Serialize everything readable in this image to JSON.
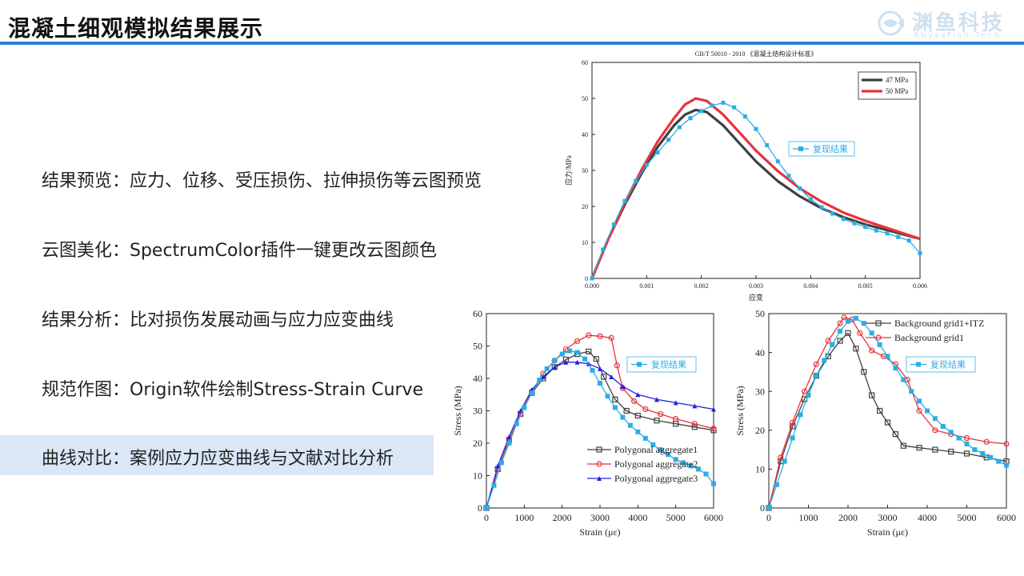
{
  "page": {
    "title": "混凝土细观模拟结果展示",
    "logo_text": "渊鱼科技",
    "logo_sub": "AbyssFish Tech"
  },
  "items": [
    {
      "label": "结果预览：应力、位移、受压损伤、拉伸损伤等云图预览",
      "highlighted": false
    },
    {
      "label": "云图美化：SpectrumColor插件一键更改云图颜色",
      "highlighted": false
    },
    {
      "label": "结果分析：比对损伤发展动画与应力应变曲线",
      "highlighted": false
    },
    {
      "label": "规范作图：Origin软件绘制Stress-Strain Curve",
      "highlighted": false
    },
    {
      "label": "曲线对比：案例应力应变曲线与文献对比分析",
      "highlighted": true
    }
  ],
  "colors": {
    "accent": "#2b7fd4",
    "highlight": "#d9e7f7",
    "series_black": "#404040",
    "series_red": "#e8333a",
    "series_cyan": "#29aee6",
    "series_blue": "#2222dd"
  },
  "chart_data": [
    {
      "type": "line",
      "title": "GB/T 50010 - 2010 《混凝土结构设计标准》",
      "xlabel": "应变",
      "ylabel": "应力/MPa",
      "xlim": [
        0,
        0.006
      ],
      "ylim": [
        0,
        60
      ],
      "xticks": [
        "0.000",
        "0.001",
        "0.002",
        "0.003",
        "0.004",
        "0.005",
        "0.006"
      ],
      "yticks": [
        "0",
        "10",
        "20",
        "30",
        "40",
        "50",
        "60"
      ],
      "legend_position": "top-right",
      "annotation": "复现结果",
      "series": [
        {
          "name": "47 MPa",
          "color": "#404040",
          "marker": "none",
          "x": [
            0,
            0.0003,
            0.0006,
            0.0009,
            0.0012,
            0.0015,
            0.0017,
            0.0019,
            0.0021,
            0.0024,
            0.0027,
            0.003,
            0.0034,
            0.0038,
            0.0042,
            0.0046,
            0.005,
            0.0055,
            0.006
          ],
          "y": [
            0,
            11,
            20.5,
            29,
            36.5,
            42.5,
            45.5,
            46.8,
            46.2,
            42.5,
            37.5,
            32.5,
            27,
            22.8,
            19.5,
            17,
            15,
            13,
            11
          ]
        },
        {
          "name": "50 MPa",
          "color": "#e8333a",
          "marker": "none",
          "x": [
            0,
            0.0003,
            0.0006,
            0.0009,
            0.0012,
            0.0015,
            0.0017,
            0.0019,
            0.0021,
            0.0024,
            0.0027,
            0.003,
            0.0034,
            0.0038,
            0.0042,
            0.0046,
            0.005,
            0.0055,
            0.006
          ],
          "y": [
            0,
            11,
            21,
            30,
            38,
            44.5,
            48.3,
            50,
            49.3,
            45.5,
            40.5,
            35.5,
            29.8,
            25,
            21.3,
            18.3,
            16,
            13.5,
            11
          ]
        },
        {
          "name": "复现结果",
          "color": "#29aee6",
          "marker": "square",
          "x": [
            0,
            0.0002,
            0.0004,
            0.0006,
            0.0008,
            0.001,
            0.0012,
            0.0014,
            0.0016,
            0.0018,
            0.002,
            0.0022,
            0.0024,
            0.0026,
            0.0028,
            0.003,
            0.0032,
            0.0034,
            0.0036,
            0.0038,
            0.004,
            0.0042,
            0.0044,
            0.0046,
            0.0048,
            0.005,
            0.0052,
            0.0054,
            0.0056,
            0.0058,
            0.006
          ],
          "y": [
            0,
            8,
            15,
            21.5,
            27,
            31.5,
            35,
            38.5,
            42,
            44.5,
            46.5,
            48,
            48.8,
            47.5,
            45,
            41.5,
            37,
            32.5,
            28.5,
            25,
            22,
            19.8,
            18,
            16.5,
            15.3,
            14.3,
            13.3,
            12.5,
            11.5,
            10.5,
            7
          ]
        }
      ]
    },
    {
      "type": "line",
      "xlabel": "Strain (με)",
      "ylabel": "Stress (MPa)",
      "xlim": [
        0,
        6000
      ],
      "ylim": [
        0,
        60
      ],
      "xticks": [
        "0",
        "1000",
        "2000",
        "3000",
        "4000",
        "5000",
        "6000"
      ],
      "yticks": [
        "0",
        "10",
        "20",
        "30",
        "40",
        "50",
        "60"
      ],
      "legend_position": "bottom-right",
      "annotation": "复现结果",
      "series": [
        {
          "name": "Polygonal aggregate1",
          "color": "#404040",
          "marker": "open-square",
          "x": [
            0,
            300,
            600,
            900,
            1200,
            1500,
            1800,
            2100,
            2400,
            2700,
            2900,
            3100,
            3400,
            3700,
            4000,
            4500,
            5000,
            5500,
            6000
          ],
          "y": [
            0,
            12,
            21,
            29,
            35.5,
            40,
            43.5,
            45.8,
            47.5,
            48.3,
            46,
            40.5,
            33.5,
            30,
            28.5,
            27,
            26,
            25,
            24
          ]
        },
        {
          "name": "Polygonal aggregate2",
          "color": "#e8333a",
          "marker": "open-circle",
          "x": [
            0,
            300,
            600,
            900,
            1200,
            1500,
            1800,
            2100,
            2400,
            2700,
            3000,
            3300,
            3450,
            3600,
            3900,
            4200,
            4600,
            5000,
            5500,
            6000
          ],
          "y": [
            0,
            12,
            21,
            29,
            36,
            41.5,
            45.5,
            49,
            51.5,
            53.3,
            53,
            52.5,
            44,
            37,
            33,
            30.5,
            29,
            27.5,
            26,
            24.5
          ]
        },
        {
          "name": "Polygonal aggregate3",
          "color": "#2222dd",
          "marker": "triangle",
          "x": [
            0,
            300,
            600,
            900,
            1200,
            1500,
            1800,
            2100,
            2400,
            2700,
            3000,
            3300,
            3600,
            4000,
            4500,
            5000,
            5500,
            6000
          ],
          "y": [
            0,
            13,
            22,
            30,
            36.5,
            40.5,
            43.5,
            45,
            45,
            44.5,
            43,
            40.5,
            37.5,
            35,
            33.5,
            32.5,
            31.5,
            30.5
          ]
        },
        {
          "name": "复现结果",
          "color": "#29aee6",
          "marker": "square",
          "x": [
            0,
            200,
            400,
            600,
            800,
            1000,
            1200,
            1400,
            1600,
            1800,
            2000,
            2200,
            2400,
            2600,
            2800,
            3000,
            3200,
            3400,
            3600,
            3800,
            4000,
            4200,
            4400,
            4600,
            4800,
            5000,
            5200,
            5400,
            5600,
            5800,
            6000
          ],
          "y": [
            0,
            7,
            14,
            20,
            26,
            31,
            35.5,
            39.5,
            43,
            45.5,
            47.5,
            48.5,
            48,
            46,
            42.5,
            38.5,
            34.5,
            31,
            28,
            25.5,
            23.5,
            21.5,
            19.5,
            18,
            16.5,
            15,
            14,
            13,
            12,
            10.5,
            7.5
          ]
        }
      ]
    },
    {
      "type": "line",
      "xlabel": "Strain (με)",
      "ylabel": "Stress (MPa)",
      "xlim": [
        0,
        6000
      ],
      "ylim": [
        0,
        50
      ],
      "xticks": [
        "0",
        "1000",
        "2000",
        "3000",
        "4000",
        "5000",
        "6000"
      ],
      "yticks": [
        "0",
        "10",
        "20",
        "30",
        "40",
        "50"
      ],
      "legend_position": "top-right",
      "annotation": "复现结果",
      "series": [
        {
          "name": "Background grid1+ITZ",
          "color": "#404040",
          "marker": "open-square",
          "x": [
            0,
            300,
            600,
            900,
            1200,
            1500,
            1800,
            2000,
            2200,
            2400,
            2600,
            2800,
            3000,
            3200,
            3400,
            3800,
            4200,
            4600,
            5000,
            5500,
            6000
          ],
          "y": [
            0,
            12,
            21,
            28,
            34,
            39,
            43,
            45,
            41,
            35,
            29,
            25,
            22,
            19,
            16,
            15.5,
            15,
            14.5,
            14,
            13,
            12
          ]
        },
        {
          "name": "Background grid1",
          "color": "#e8333a",
          "marker": "open-circle",
          "x": [
            0,
            300,
            600,
            900,
            1200,
            1500,
            1800,
            1900,
            2100,
            2300,
            2600,
            2900,
            3200,
            3500,
            3800,
            4200,
            4600,
            5000,
            5500,
            6000
          ],
          "y": [
            0,
            13,
            22,
            30,
            37,
            43,
            47.5,
            49,
            48.5,
            45,
            40.5,
            39,
            37,
            33,
            25,
            20,
            19,
            18,
            17,
            16.5
          ]
        },
        {
          "name": "复现结果",
          "color": "#29aee6",
          "marker": "square",
          "x": [
            0,
            200,
            400,
            600,
            800,
            1000,
            1200,
            1400,
            1600,
            1800,
            2000,
            2200,
            2400,
            2600,
            2800,
            3000,
            3200,
            3400,
            3600,
            3800,
            4000,
            4200,
            4400,
            4600,
            4800,
            5000,
            5200,
            5400,
            5600,
            5800,
            6000
          ],
          "y": [
            0,
            6,
            12,
            18,
            24,
            29,
            34,
            38,
            42,
            45.5,
            48,
            48.8,
            47.5,
            45,
            42,
            39,
            36,
            33,
            30,
            27.5,
            25,
            23,
            21,
            19.5,
            18,
            16.5,
            15,
            14,
            13,
            12,
            11
          ]
        }
      ]
    }
  ]
}
